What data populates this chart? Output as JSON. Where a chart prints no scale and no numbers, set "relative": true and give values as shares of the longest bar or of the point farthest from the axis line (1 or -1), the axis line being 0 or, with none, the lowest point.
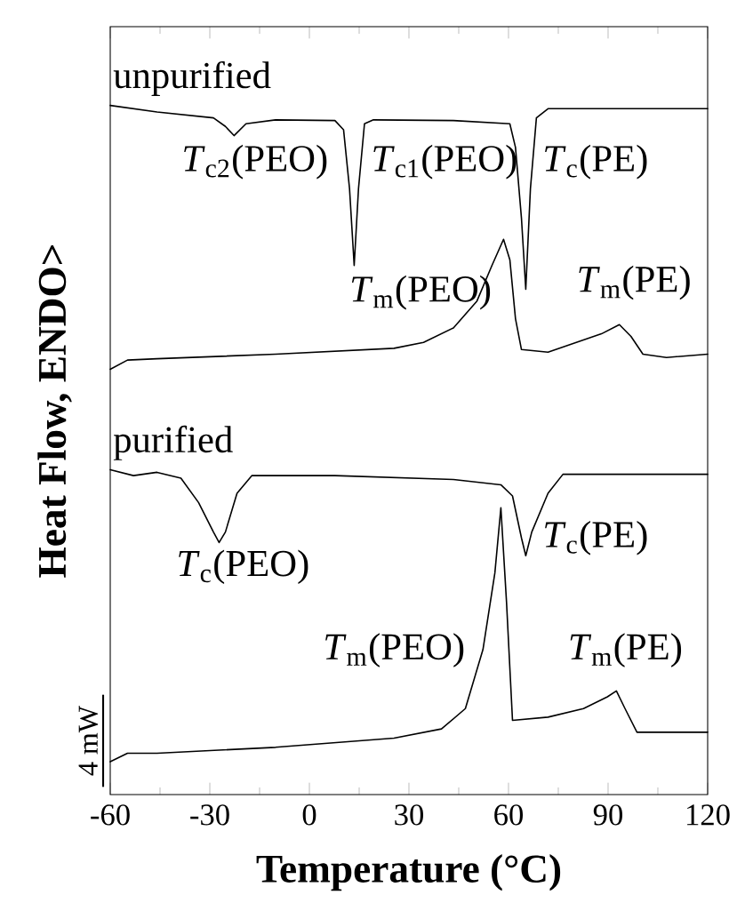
{
  "chart_data": {
    "type": "line",
    "xlabel": "Temperature (°C)",
    "ylabel": "Heat Flow, ENDO>",
    "relative": true,
    "xlim": [
      -60,
      120
    ],
    "xticks": [
      -60,
      -30,
      0,
      30,
      60,
      90,
      120
    ],
    "series": [
      {
        "name": "unpurified",
        "color": "#000000",
        "x": [
          -60,
          -45.9,
          -28.9,
          -25.3,
          -22.7,
          -19.1,
          -10.2,
          7.7,
          10.3,
          12.1,
          13.5,
          14.8,
          16.6,
          19.3,
          43.4,
          60.4,
          62.1,
          63.9,
          65.2,
          66.6,
          68.4,
          71.9,
          120
        ],
        "values": [
          1.0,
          0.99,
          0.981,
          0.968,
          0.954,
          0.972,
          0.978,
          0.977,
          0.963,
          0.873,
          0.756,
          0.873,
          0.972,
          0.978,
          0.977,
          0.972,
          0.936,
          0.828,
          0.72,
          0.873,
          0.981,
          0.995,
          0.995
        ]
      },
      {
        "color": "#000000",
        "x": [
          -60,
          -54.8,
          -45.9,
          -10.2,
          25.5,
          34.4,
          43.4,
          50.5,
          55.0,
          58.5,
          60.4,
          62.1,
          63.9,
          71.9,
          88.0,
          93.4,
          96.9,
          100.5,
          107.6,
          120
        ],
        "values": [
          0.598,
          0.612,
          0.614,
          0.621,
          0.63,
          0.639,
          0.661,
          0.702,
          0.756,
          0.796,
          0.765,
          0.675,
          0.628,
          0.624,
          0.652,
          0.666,
          0.648,
          0.621,
          0.616,
          0.621
        ]
      },
      {
        "name": "purified",
        "color": "#000000",
        "x": [
          -60,
          -53.0,
          -45.9,
          -38.7,
          -33.4,
          -28.9,
          -27.2,
          -25.3,
          -21.8,
          -17.3,
          7.7,
          43.4,
          57.7,
          61.2,
          63.9,
          65.2,
          67.0,
          71.9,
          76.4,
          120
        ],
        "values": [
          0.445,
          0.436,
          0.441,
          0.432,
          0.395,
          0.35,
          0.334,
          0.35,
          0.409,
          0.436,
          0.436,
          0.43,
          0.422,
          0.405,
          0.341,
          0.314,
          0.35,
          0.409,
          0.438,
          0.438
        ]
      },
      {
        "color": "#000000",
        "x": [
          -60,
          -54.8,
          -45.9,
          -10.2,
          25.5,
          39.8,
          47.0,
          52.3,
          55.9,
          57.7,
          59.4,
          61.2,
          71.9,
          82.6,
          89.8,
          92.5,
          95.1,
          98.7,
          120
        ],
        "values": [
          0,
          0.013,
          0.013,
          0.022,
          0.036,
          0.05,
          0.081,
          0.171,
          0.288,
          0.387,
          0.243,
          0.063,
          0.068,
          0.081,
          0.099,
          0.108,
          0.081,
          0.045,
          0.045
        ]
      }
    ],
    "annotations": [
      "*T*$_{c2}$(PEO)",
      "*T*$_{c1}$(PEO)",
      "*T*$_{c}$(PE)",
      "*T*$_{m}$(PEO)",
      "*T*$_{m}$(PE)",
      "*T*$_{c}$(PEO)",
      "*T*$_{c}$(PE)",
      "*T*$_{m}$(PEO)",
      "*T*$_{m}$(PE)",
      "4 mW"
    ]
  }
}
